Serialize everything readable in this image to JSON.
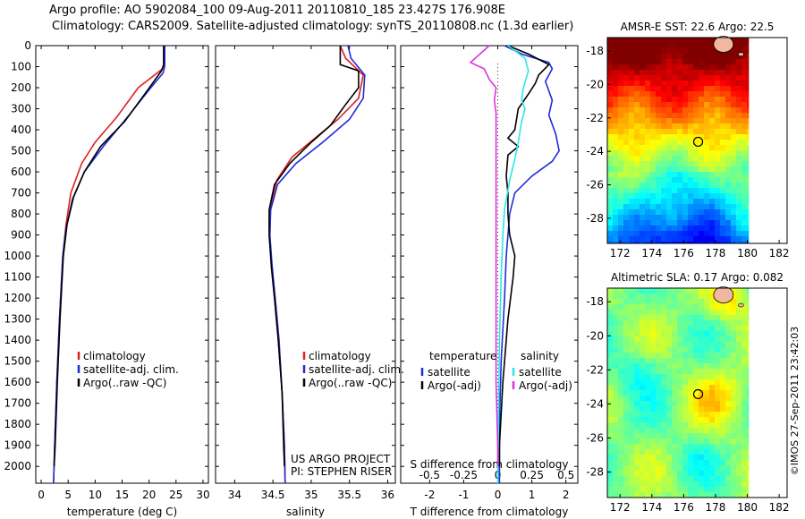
{
  "header": {
    "line1": "Argo profile: AO 5902084_100 09-Aug-2011 20110810_185 23.427S 176.908E",
    "line2": "Climatology: CARS2009. Satellite-adjusted climatology: synTS_20110808.nc (1.3d earlier)"
  },
  "footer": {
    "stamp": "©IMOS 27-Sep-2011 23:42:03"
  },
  "colors": {
    "red": "#e02020",
    "blue": "#1d2bd8",
    "black": "#000000",
    "cyan": "#2ee6e6",
    "magenta": "#e030e0"
  },
  "chart_data": [
    {
      "type": "line",
      "xlabel": "temperature (deg C)",
      "xlim": [
        -1,
        31
      ],
      "xticks": [
        "0",
        "5",
        "10",
        "15",
        "20",
        "25",
        "30"
      ],
      "xtick_values": [
        0,
        5,
        10,
        15,
        20,
        25,
        30
      ],
      "ylim": [
        0,
        2080
      ],
      "yticks": [
        "0",
        "100",
        "200",
        "300",
        "400",
        "500",
        "600",
        "700",
        "800",
        "900",
        "1000",
        "1100",
        "1200",
        "1300",
        "1400",
        "1500",
        "1600",
        "1700",
        "1800",
        "1900",
        "2000"
      ],
      "legend": [
        "climatology",
        "satellite-adj. clim.",
        "Argo(..raw -QC)"
      ],
      "legend_position": "bottom-center",
      "series": [
        {
          "name": "climatology",
          "color": "red",
          "points": [
            [
              22.9,
              0
            ],
            [
              22.9,
              80
            ],
            [
              22.5,
              110
            ],
            [
              18,
              200
            ],
            [
              14,
              340
            ],
            [
              10,
              460
            ],
            [
              7.5,
              560
            ],
            [
              5.5,
              700
            ],
            [
              4.6,
              850
            ],
            [
              4,
              1000
            ],
            [
              3.4,
              1300
            ],
            [
              2.9,
              1600
            ],
            [
              2.5,
              1900
            ],
            [
              2.3,
              2080
            ]
          ]
        },
        {
          "name": "satellite-adj. clim.",
          "color": "blue",
          "points": [
            [
              22.9,
              0
            ],
            [
              22.9,
              100
            ],
            [
              22.6,
              130
            ],
            [
              20,
              210
            ],
            [
              16,
              340
            ],
            [
              11.5,
              480
            ],
            [
              8,
              600
            ],
            [
              5.8,
              730
            ],
            [
              4.6,
              870
            ],
            [
              4,
              1000
            ],
            [
              3.4,
              1300
            ],
            [
              2.9,
              1600
            ],
            [
              2.5,
              1900
            ],
            [
              2.3,
              2080
            ]
          ]
        },
        {
          "name": "Argo(..raw -QC)",
          "color": "black",
          "points": [
            [
              22.7,
              0
            ],
            [
              22.7,
              90
            ],
            [
              22.3,
              120
            ],
            [
              19.5,
              220
            ],
            [
              15.5,
              360
            ],
            [
              11,
              480
            ],
            [
              8,
              600
            ],
            [
              6,
              720
            ],
            [
              4.8,
              850
            ],
            [
              4.1,
              1000
            ],
            [
              3.5,
              1300
            ],
            [
              3,
              1600
            ],
            [
              2.6,
              1900
            ],
            [
              2.4,
              2000
            ]
          ]
        }
      ]
    },
    {
      "type": "line",
      "xlabel": "salinity",
      "xlim": [
        33.75,
        36.1
      ],
      "xticks": [
        "34",
        "34.5",
        "35",
        "35.5",
        "36"
      ],
      "xtick_values": [
        34,
        34.5,
        35,
        35.5,
        36
      ],
      "ylim": [
        0,
        2080
      ],
      "legend": [
        "climatology",
        "satellite-adj. clim.",
        "Argo(..raw -QC)"
      ],
      "legend_position": "bottom-right",
      "annotations": [
        "US ARGO PROJECT",
        "PI: STEPHEN RISER"
      ],
      "series": [
        {
          "name": "climatology",
          "color": "red",
          "points": [
            [
              35.38,
              0
            ],
            [
              35.45,
              60
            ],
            [
              35.68,
              140
            ],
            [
              35.62,
              250
            ],
            [
              35.35,
              350
            ],
            [
              35.05,
              440
            ],
            [
              34.75,
              530
            ],
            [
              34.55,
              640
            ],
            [
              34.47,
              760
            ],
            [
              34.46,
              900
            ],
            [
              34.48,
              1050
            ],
            [
              34.52,
              1200
            ],
            [
              34.57,
              1400
            ],
            [
              34.62,
              1650
            ],
            [
              34.65,
              1900
            ],
            [
              34.66,
              2080
            ]
          ]
        },
        {
          "name": "satellite-adj. clim.",
          "color": "blue",
          "points": [
            [
              35.48,
              0
            ],
            [
              35.52,
              60
            ],
            [
              35.7,
              140
            ],
            [
              35.68,
              250
            ],
            [
              35.5,
              350
            ],
            [
              35.15,
              460
            ],
            [
              34.8,
              560
            ],
            [
              34.56,
              660
            ],
            [
              34.47,
              780
            ],
            [
              34.46,
              900
            ],
            [
              34.49,
              1050
            ],
            [
              34.53,
              1200
            ],
            [
              34.58,
              1400
            ],
            [
              34.62,
              1650
            ],
            [
              34.65,
              1900
            ],
            [
              34.66,
              2080
            ]
          ]
        },
        {
          "name": "Argo(..raw -QC)",
          "color": "black",
          "points": [
            [
              35.38,
              0
            ],
            [
              35.38,
              90
            ],
            [
              35.62,
              120
            ],
            [
              35.62,
              200
            ],
            [
              35.45,
              280
            ],
            [
              35.25,
              380
            ],
            [
              35,
              460
            ],
            [
              34.72,
              560
            ],
            [
              34.52,
              660
            ],
            [
              34.45,
              780
            ],
            [
              34.45,
              900
            ],
            [
              34.48,
              1050
            ],
            [
              34.52,
              1200
            ],
            [
              34.57,
              1400
            ],
            [
              34.62,
              1650
            ],
            [
              34.64,
              1900
            ],
            [
              34.65,
              2000
            ]
          ]
        }
      ]
    },
    {
      "type": "line",
      "xlabel_top": "S difference from climatology",
      "xlabel": "T difference from climatology",
      "top_ticks": [
        "-0.5",
        "-0.25",
        "0",
        "0.25",
        "0.5"
      ],
      "top_tick_values": [
        -0.5,
        -0.25,
        0,
        0.25,
        0.5
      ],
      "xticks": [
        "-2",
        "-1",
        "0",
        "1",
        "2"
      ],
      "xtick_values": [
        -2,
        -1,
        0,
        1,
        2
      ],
      "xlim": [
        -2.85,
        2.35
      ],
      "ylim": [
        0,
        2080
      ],
      "legend_titles": [
        "temperature",
        "salinity"
      ],
      "legend": [
        "satellite",
        "Argo(-adj)",
        "satellite",
        "Argo(-adj)"
      ],
      "legend_position": "bottom",
      "series": [
        {
          "name": "temperature satellite",
          "color": "blue",
          "points": [
            [
              0.2,
              0
            ],
            [
              0.7,
              40
            ],
            [
              1.5,
              80
            ],
            [
              1.6,
              110
            ],
            [
              1.4,
              170
            ],
            [
              1.6,
              260
            ],
            [
              1.5,
              330
            ],
            [
              1.7,
              420
            ],
            [
              1.8,
              500
            ],
            [
              1.6,
              550
            ],
            [
              1.0,
              620
            ],
            [
              0.5,
              700
            ],
            [
              0.35,
              800
            ],
            [
              0.3,
              900
            ],
            [
              0.25,
              1000
            ],
            [
              0.2,
              1200
            ],
            [
              0.1,
              1500
            ],
            [
              0.05,
              1800
            ],
            [
              0.05,
              2080
            ]
          ]
        },
        {
          "name": "temperature Argo(-adj)",
          "color": "black",
          "points": [
            [
              0.3,
              0
            ],
            [
              0.9,
              40
            ],
            [
              1.5,
              90
            ],
            [
              1.2,
              140
            ],
            [
              1.1,
              180
            ],
            [
              0.9,
              230
            ],
            [
              0.6,
              300
            ],
            [
              0.5,
              400
            ],
            [
              0.3,
              440
            ],
            [
              0.6,
              480
            ],
            [
              0.3,
              520
            ],
            [
              0.25,
              620
            ],
            [
              0.3,
              700
            ],
            [
              0.3,
              800
            ],
            [
              0.35,
              900
            ],
            [
              0.5,
              1000
            ],
            [
              0.45,
              1100
            ],
            [
              0.3,
              1300
            ],
            [
              0.15,
              1600
            ],
            [
              0.05,
              1900
            ],
            [
              0.05,
              2000
            ]
          ]
        },
        {
          "name": "salinity satellite",
          "color": "cyan",
          "points": [
            [
              0.3,
              0
            ],
            [
              0.8,
              60
            ],
            [
              0.9,
              120
            ],
            [
              0.75,
              200
            ],
            [
              0.7,
              260
            ],
            [
              0.8,
              300
            ],
            [
              0.7,
              360
            ],
            [
              0.6,
              460
            ],
            [
              0.5,
              540
            ],
            [
              0.35,
              640
            ],
            [
              0.2,
              780
            ],
            [
              0.15,
              900
            ],
            [
              0.1,
              1100
            ],
            [
              0.05,
              1400
            ],
            [
              0.02,
              1800
            ],
            [
              0,
              2080
            ]
          ]
        },
        {
          "name": "salinity Argo(-adj)",
          "color": "magenta",
          "points": [
            [
              -0.25,
              0
            ],
            [
              -0.8,
              80
            ],
            [
              -0.4,
              110
            ],
            [
              -0.25,
              160
            ],
            [
              -0.05,
              200
            ],
            [
              -0.1,
              260
            ],
            [
              -0.05,
              320
            ],
            [
              -0.05,
              500
            ],
            [
              -0.05,
              700
            ],
            [
              -0.05,
              900
            ],
            [
              -0.05,
              1200
            ],
            [
              -0.05,
              1600
            ],
            [
              0,
              1900
            ],
            [
              0,
              2000
            ]
          ]
        }
      ]
    },
    {
      "type": "heatmap",
      "title": "AMSR-E SST: 22.6 Argo: 22.5",
      "xticks": [
        "172",
        "174",
        "176",
        "178",
        "180",
        "182"
      ],
      "xtick_values": [
        172,
        174,
        176,
        178,
        180,
        182
      ],
      "yticks": [
        "-18",
        "-20",
        "-22",
        "-24",
        "-26",
        "-28"
      ],
      "ytick_values": [
        -18,
        -20,
        -22,
        -24,
        -26,
        -28
      ],
      "xlim": [
        171.2,
        182.5
      ],
      "ylim": [
        -29.5,
        -17.2
      ],
      "data_extent_lon": [
        171.2,
        180.1
      ],
      "marker": {
        "lon": 176.908,
        "lat": -23.427
      },
      "colormap": "jet"
    },
    {
      "type": "heatmap",
      "title": "Altimetric SLA: 0.17 Argo: 0.082",
      "xticks": [
        "172",
        "174",
        "176",
        "178",
        "180",
        "182"
      ],
      "xtick_values": [
        172,
        174,
        176,
        178,
        180,
        182
      ],
      "yticks": [
        "-18",
        "-20",
        "-22",
        "-24",
        "-26",
        "-28"
      ],
      "ytick_values": [
        -18,
        -20,
        -22,
        -24,
        -26,
        -28
      ],
      "xlim": [
        171.2,
        182.5
      ],
      "ylim": [
        -29.5,
        -17.2
      ],
      "data_extent_lon": [
        171.2,
        180.1
      ],
      "marker": {
        "lon": 176.908,
        "lat": -23.427
      },
      "colormap": "jet"
    }
  ]
}
